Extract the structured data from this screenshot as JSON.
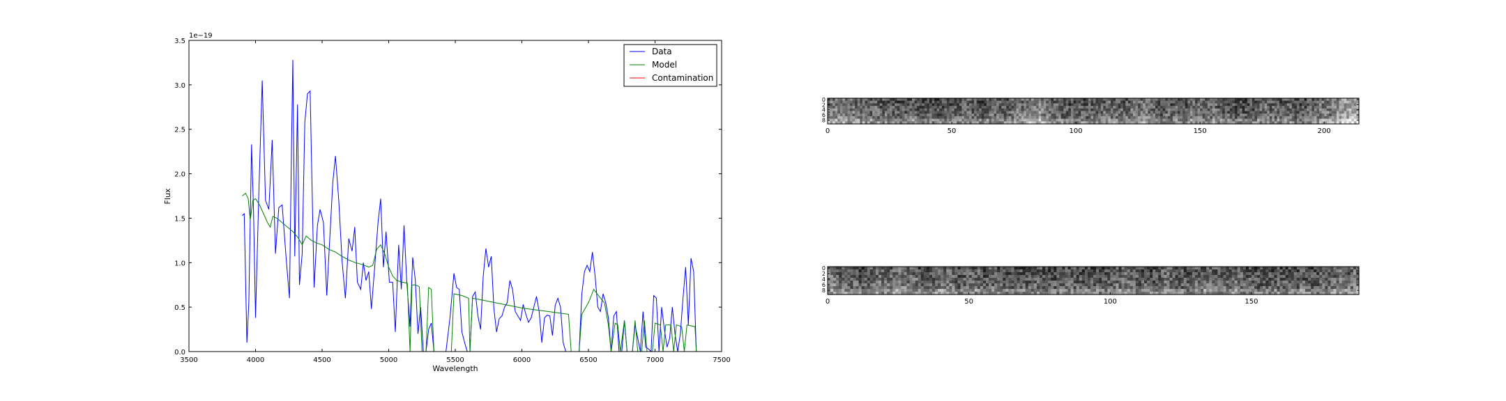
{
  "chart_data": [
    {
      "type": "line",
      "xlabel": "Wavelength",
      "ylabel": "Flux",
      "offset_label": "1e−19",
      "xlim": [
        3500,
        7500
      ],
      "ylim": [
        0.0,
        3.5
      ],
      "xticks": [
        "3500",
        "4000",
        "4500",
        "5000",
        "5500",
        "6000",
        "6500",
        "7000",
        "7500"
      ],
      "yticks": [
        "0.0",
        "0.5",
        "1.0",
        "1.5",
        "2.0",
        "2.5",
        "3.0",
        "3.5"
      ],
      "grid": false,
      "legend_position": "top-right",
      "series": [
        {
          "name": "Data",
          "color": "#0000ff",
          "points": [
            [
              3900,
              1.53
            ],
            [
              3915,
              1.55
            ],
            [
              3935,
              0.1
            ],
            [
              3950,
              0.55
            ],
            [
              3970,
              2.33
            ],
            [
              3985,
              1.6
            ],
            [
              4000,
              0.38
            ],
            [
              4025,
              1.8
            ],
            [
              4050,
              3.05
            ],
            [
              4075,
              1.7
            ],
            [
              4100,
              1.6
            ],
            [
              4125,
              2.38
            ],
            [
              4150,
              1.1
            ],
            [
              4175,
              1.62
            ],
            [
              4200,
              1.65
            ],
            [
              4230,
              1.05
            ],
            [
              4255,
              0.6
            ],
            [
              4270,
              2.3
            ],
            [
              4280,
              3.28
            ],
            [
              4295,
              1.07
            ],
            [
              4315,
              2.78
            ],
            [
              4330,
              0.75
            ],
            [
              4350,
              1.1
            ],
            [
              4370,
              2.58
            ],
            [
              4390,
              2.9
            ],
            [
              4410,
              2.93
            ],
            [
              4440,
              0.72
            ],
            [
              4465,
              1.42
            ],
            [
              4485,
              1.6
            ],
            [
              4510,
              1.45
            ],
            [
              4535,
              0.63
            ],
            [
              4555,
              1.2
            ],
            [
              4580,
              1.9
            ],
            [
              4600,
              2.2
            ],
            [
              4625,
              1.7
            ],
            [
              4650,
              1.02
            ],
            [
              4675,
              0.6
            ],
            [
              4700,
              1.27
            ],
            [
              4725,
              1.13
            ],
            [
              4745,
              1.4
            ],
            [
              4765,
              0.78
            ],
            [
              4790,
              0.7
            ],
            [
              4810,
              1.0
            ],
            [
              4830,
              0.8
            ],
            [
              4850,
              0.9
            ],
            [
              4870,
              0.48
            ],
            [
              4895,
              0.95
            ],
            [
              4920,
              1.45
            ],
            [
              4940,
              1.72
            ],
            [
              4960,
              0.95
            ],
            [
              4980,
              1.35
            ],
            [
              5005,
              0.78
            ],
            [
              5030,
              0.78
            ],
            [
              5050,
              0.22
            ],
            [
              5075,
              1.2
            ],
            [
              5095,
              0.7
            ],
            [
              5115,
              1.42
            ],
            [
              5135,
              0.8
            ],
            [
              5160,
              0.28
            ],
            [
              5180,
              1.06
            ],
            [
              5200,
              0.8
            ],
            [
              5220,
              0.2
            ],
            [
              5240,
              0.5
            ],
            [
              5260,
              0.0
            ],
            [
              5280,
              0.0
            ],
            [
              5300,
              0.25
            ],
            [
              5320,
              0.32
            ],
            [
              5340,
              0.0
            ],
            [
              5360,
              0.0
            ],
            [
              5380,
              0.0
            ],
            [
              5400,
              0.0
            ],
            [
              5430,
              0.0
            ],
            [
              5460,
              0.38
            ],
            [
              5490,
              0.88
            ],
            [
              5510,
              0.72
            ],
            [
              5530,
              0.7
            ],
            [
              5550,
              0.22
            ],
            [
              5570,
              0.1
            ],
            [
              5590,
              0.0
            ],
            [
              5610,
              0.0
            ],
            [
              5630,
              0.62
            ],
            [
              5650,
              0.67
            ],
            [
              5670,
              0.4
            ],
            [
              5690,
              0.25
            ],
            [
              5710,
              0.85
            ],
            [
              5730,
              1.16
            ],
            [
              5750,
              0.95
            ],
            [
              5770,
              1.07
            ],
            [
              5790,
              0.48
            ],
            [
              5810,
              0.22
            ],
            [
              5830,
              0.37
            ],
            [
              5850,
              0.4
            ],
            [
              5870,
              0.5
            ],
            [
              5890,
              0.55
            ],
            [
              5910,
              0.8
            ],
            [
              5930,
              0.7
            ],
            [
              5950,
              0.45
            ],
            [
              5970,
              0.4
            ],
            [
              5990,
              0.35
            ],
            [
              6010,
              0.53
            ],
            [
              6030,
              0.42
            ],
            [
              6050,
              0.33
            ],
            [
              6070,
              0.38
            ],
            [
              6090,
              0.5
            ],
            [
              6110,
              0.62
            ],
            [
              6130,
              0.45
            ],
            [
              6150,
              0.1
            ],
            [
              6170,
              0.38
            ],
            [
              6190,
              0.41
            ],
            [
              6210,
              0.4
            ],
            [
              6230,
              0.18
            ],
            [
              6250,
              0.52
            ],
            [
              6270,
              0.6
            ],
            [
              6290,
              0.5
            ],
            [
              6310,
              0.1
            ],
            [
              6330,
              0.0
            ],
            [
              6350,
              0.0
            ],
            [
              6370,
              0.0
            ],
            [
              6400,
              0.0
            ],
            [
              6430,
              0.0
            ],
            [
              6450,
              0.65
            ],
            [
              6470,
              0.9
            ],
            [
              6490,
              0.97
            ],
            [
              6510,
              0.9
            ],
            [
              6530,
              1.12
            ],
            [
              6550,
              0.85
            ],
            [
              6570,
              0.5
            ],
            [
              6590,
              0.45
            ],
            [
              6610,
              0.65
            ],
            [
              6630,
              0.55
            ],
            [
              6650,
              0.38
            ],
            [
              6670,
              0.0
            ],
            [
              6690,
              0.4
            ],
            [
              6710,
              0.45
            ],
            [
              6730,
              0.0
            ],
            [
              6750,
              0.0
            ],
            [
              6770,
              0.35
            ],
            [
              6790,
              0.0
            ],
            [
              6810,
              0.0
            ],
            [
              6830,
              0.0
            ],
            [
              6850,
              0.3
            ],
            [
              6870,
              0.15
            ],
            [
              6890,
              0.0
            ],
            [
              6910,
              0.45
            ],
            [
              6930,
              0.05
            ],
            [
              6950,
              0.03
            ],
            [
              6970,
              0.0
            ],
            [
              6990,
              0.63
            ],
            [
              7010,
              0.6
            ],
            [
              7030,
              0.0
            ],
            [
              7050,
              0.5
            ],
            [
              7070,
              0.25
            ],
            [
              7090,
              0.05
            ],
            [
              7110,
              0.15
            ],
            [
              7130,
              0.5
            ],
            [
              7150,
              0.2
            ],
            [
              7170,
              0.0
            ],
            [
              7190,
              0.2
            ],
            [
              7210,
              0.6
            ],
            [
              7230,
              0.95
            ],
            [
              7250,
              0.3
            ],
            [
              7270,
              1.05
            ],
            [
              7290,
              0.9
            ],
            [
              7310,
              0.0
            ]
          ]
        },
        {
          "name": "Model",
          "color": "#008000",
          "points": [
            [
              3900,
              1.75
            ],
            [
              3925,
              1.78
            ],
            [
              3945,
              1.72
            ],
            [
              3960,
              1.48
            ],
            [
              3980,
              1.7
            ],
            [
              4000,
              1.72
            ],
            [
              4030,
              1.65
            ],
            [
              4060,
              1.55
            ],
            [
              4090,
              1.45
            ],
            [
              4110,
              1.4
            ],
            [
              4130,
              1.52
            ],
            [
              4160,
              1.5
            ],
            [
              4200,
              1.45
            ],
            [
              4240,
              1.4
            ],
            [
              4280,
              1.35
            ],
            [
              4320,
              1.28
            ],
            [
              4350,
              1.2
            ],
            [
              4380,
              1.3
            ],
            [
              4420,
              1.25
            ],
            [
              4460,
              1.22
            ],
            [
              4500,
              1.2
            ],
            [
              4550,
              1.15
            ],
            [
              4600,
              1.12
            ],
            [
              4650,
              1.07
            ],
            [
              4700,
              1.03
            ],
            [
              4750,
              1.0
            ],
            [
              4800,
              0.98
            ],
            [
              4850,
              0.95
            ],
            [
              4880,
              0.97
            ],
            [
              4910,
              1.15
            ],
            [
              4940,
              1.2
            ],
            [
              4970,
              1.1
            ],
            [
              5000,
              0.95
            ],
            [
              5030,
              0.85
            ],
            [
              5060,
              0.8
            ],
            [
              5100,
              0.78
            ],
            [
              5140,
              0.77
            ],
            [
              5160,
              0.0
            ],
            [
              5175,
              0.75
            ],
            [
              5200,
              0.75
            ],
            [
              5230,
              0.73
            ],
            [
              5250,
              0.0
            ],
            [
              5280,
              0.0
            ],
            [
              5300,
              0.72
            ],
            [
              5320,
              0.7
            ],
            [
              5340,
              0.0
            ],
            [
              5400,
              0.0
            ],
            [
              5470,
              0.0
            ],
            [
              5490,
              0.65
            ],
            [
              5550,
              0.63
            ],
            [
              5600,
              0.6
            ],
            [
              5610,
              0.0
            ],
            [
              5630,
              0.6
            ],
            [
              5700,
              0.58
            ],
            [
              5800,
              0.55
            ],
            [
              5900,
              0.52
            ],
            [
              6000,
              0.49
            ],
            [
              6100,
              0.47
            ],
            [
              6200,
              0.45
            ],
            [
              6300,
              0.43
            ],
            [
              6350,
              0.42
            ],
            [
              6370,
              0.0
            ],
            [
              6430,
              0.0
            ],
            [
              6450,
              0.42
            ],
            [
              6500,
              0.55
            ],
            [
              6540,
              0.7
            ],
            [
              6580,
              0.62
            ],
            [
              6620,
              0.55
            ],
            [
              6650,
              0.3
            ],
            [
              6670,
              0.0
            ],
            [
              6700,
              0.32
            ],
            [
              6720,
              0.3
            ],
            [
              6740,
              0.0
            ],
            [
              6770,
              0.35
            ],
            [
              6790,
              0.0
            ],
            [
              6830,
              0.0
            ],
            [
              6850,
              0.35
            ],
            [
              6870,
              0.0
            ],
            [
              6900,
              0.0
            ],
            [
              6920,
              0.35
            ],
            [
              6940,
              0.0
            ],
            [
              6980,
              0.0
            ],
            [
              7000,
              0.32
            ],
            [
              7040,
              0.3
            ],
            [
              7060,
              0.0
            ],
            [
              7080,
              0.3
            ],
            [
              7120,
              0.3
            ],
            [
              7140,
              0.0
            ],
            [
              7160,
              0.3
            ],
            [
              7200,
              0.28
            ],
            [
              7220,
              0.0
            ],
            [
              7240,
              0.3
            ],
            [
              7300,
              0.28
            ],
            [
              7310,
              0.0
            ]
          ]
        },
        {
          "name": "Contamination",
          "color": "#ff0000",
          "points": [
            [
              3900,
              0
            ],
            [
              7310,
              0
            ]
          ]
        }
      ]
    },
    {
      "type": "heatmap",
      "xlim": [
        0,
        214
      ],
      "ylim": [
        0,
        10
      ],
      "xticks": [
        "0",
        "50",
        "100",
        "150",
        "200"
      ],
      "yticks": [
        "0",
        "2",
        "4",
        "6",
        "8"
      ],
      "colormap": "gray",
      "cols": 214,
      "rows": 10,
      "seed": 17
    },
    {
      "type": "heatmap",
      "xlim": [
        0,
        188
      ],
      "ylim": [
        0,
        10
      ],
      "xticks": [
        "0",
        "50",
        "100",
        "150"
      ],
      "yticks": [
        "0",
        "2",
        "4",
        "6",
        "8"
      ],
      "colormap": "gray",
      "cols": 188,
      "rows": 10,
      "seed": 91
    }
  ]
}
